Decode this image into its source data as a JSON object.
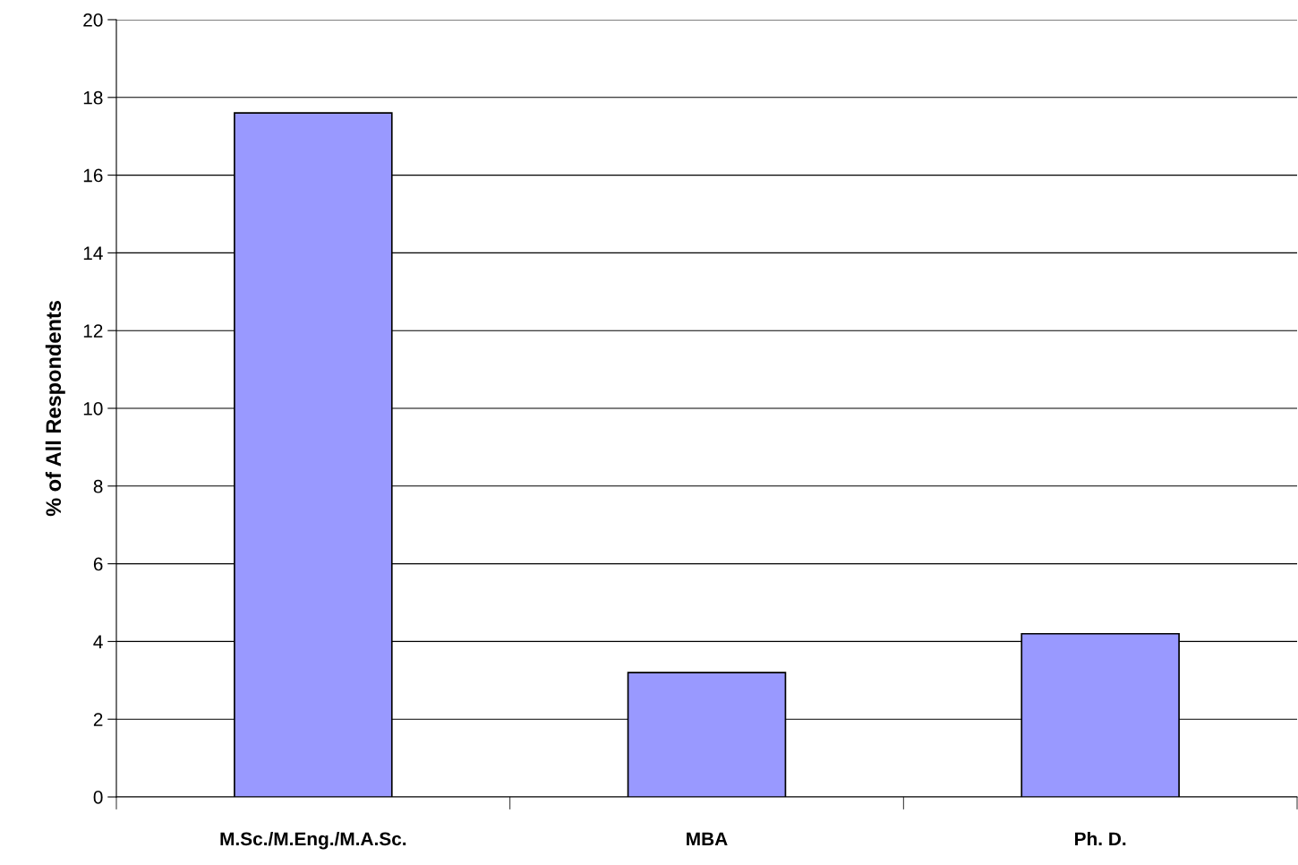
{
  "chart_data": {
    "type": "bar",
    "ylabel": "% of All Respondents",
    "categories": [
      "M.Sc./M.Eng./M.A.Sc.",
      "MBA",
      "Ph. D."
    ],
    "values": [
      17.6,
      3.2,
      4.2
    ],
    "color": "#9999ff",
    "ylim": [
      0,
      20
    ],
    "yticks": [
      0,
      2,
      4,
      6,
      8,
      10,
      12,
      14,
      16,
      18,
      20
    ],
    "grid": "y",
    "legend": false
  }
}
